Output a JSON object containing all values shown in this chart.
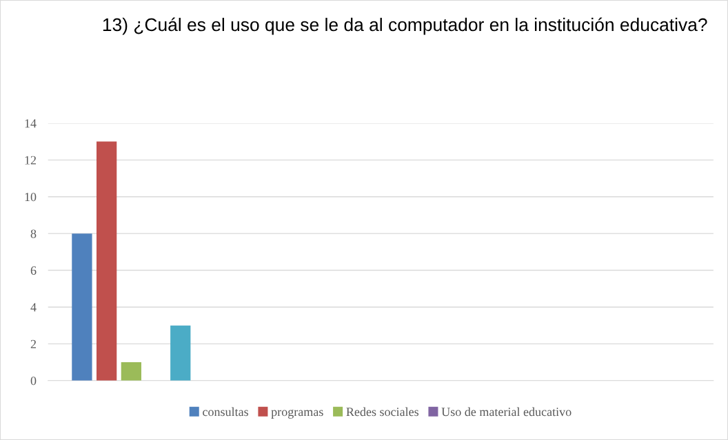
{
  "chart_data": {
    "type": "bar",
    "title": "13) ¿Cuál es el uso que se le da al computador en la institución educativa?",
    "categories": [
      null,
      null,
      null,
      null
    ],
    "series": [
      {
        "name": "consultas",
        "color": "#4f81bd",
        "values": [
          8,
          null,
          null,
          null
        ]
      },
      {
        "name": "programas",
        "color": "#c0504d",
        "values": [
          13,
          null,
          null,
          null
        ]
      },
      {
        "name": "Redes sociales",
        "color": "#9bbb59",
        "values": [
          1,
          null,
          null,
          null
        ]
      },
      {
        "name": "Uso de material educativo",
        "color": "#8064a2",
        "values": [
          0,
          null,
          null,
          null
        ]
      },
      {
        "color": "#4bacc6",
        "values": [
          3,
          null,
          null,
          null
        ]
      }
    ],
    "ylim": [
      0,
      14
    ],
    "yticks": [
      0,
      2,
      4,
      6,
      8,
      10,
      12,
      14
    ],
    "grid": "y",
    "legend": "bottom"
  }
}
